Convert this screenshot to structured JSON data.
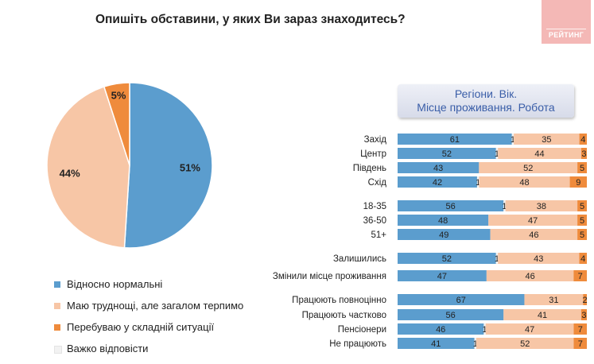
{
  "title": "Опишіть обставини, у яких Ви зараз знаходитесь?",
  "logo_text": "РЕЙТИНГ",
  "colors": {
    "normal": "#5b9dce",
    "difficult_tolerable": "#f7c6a6",
    "hard": "#ef8b3c",
    "hard_to_say": "#f2f2f2"
  },
  "chart_data": [
    {
      "type": "pie",
      "title": "",
      "categories": [
        "Відносно нормальні",
        "Маю труднощі, але загалом терпимо",
        "Перебуваю у складній ситуації",
        "Важко відповісти"
      ],
      "values": [
        51,
        44,
        5,
        0
      ],
      "value_labels": [
        "51%",
        "44%",
        "5%",
        ""
      ],
      "legend_position": "bottom"
    },
    {
      "type": "bar",
      "orientation": "horizontal",
      "stacked": true,
      "title_line1": "Регіони. Вік.",
      "title_line2": "Місце проживання. Робота",
      "categories": [
        "Захід",
        "Центр",
        "Південь",
        "Схід",
        "18-35",
        "36-50",
        "51+",
        "Залишились",
        "Змінили місце проживання",
        "Працюють повноцінно",
        "Працюють частково",
        "Пенсіонери",
        "Не працюють"
      ],
      "groups": [
        [
          0,
          1,
          2,
          3
        ],
        [
          4,
          5,
          6
        ],
        [
          7,
          8
        ],
        [
          9,
          10,
          11,
          12
        ]
      ],
      "series": [
        {
          "name": "Відносно нормальні",
          "values": [
            61,
            52,
            43,
            42,
            56,
            48,
            49,
            52,
            47,
            67,
            56,
            46,
            41
          ]
        },
        {
          "name": "Важко відповісти",
          "values": [
            1,
            1,
            0,
            1,
            1,
            0,
            0,
            1,
            0,
            0,
            0,
            1,
            1
          ]
        },
        {
          "name": "Маю труднощі, але загалом терпимо",
          "values": [
            35,
            44,
            52,
            48,
            38,
            47,
            46,
            43,
            46,
            31,
            41,
            47,
            52
          ]
        },
        {
          "name": "Перебуваю у складній ситуації",
          "values": [
            4,
            3,
            5,
            9,
            5,
            5,
            5,
            4,
            7,
            2,
            3,
            7,
            7
          ]
        }
      ],
      "xlim": [
        0,
        100
      ],
      "grid": false
    }
  ]
}
